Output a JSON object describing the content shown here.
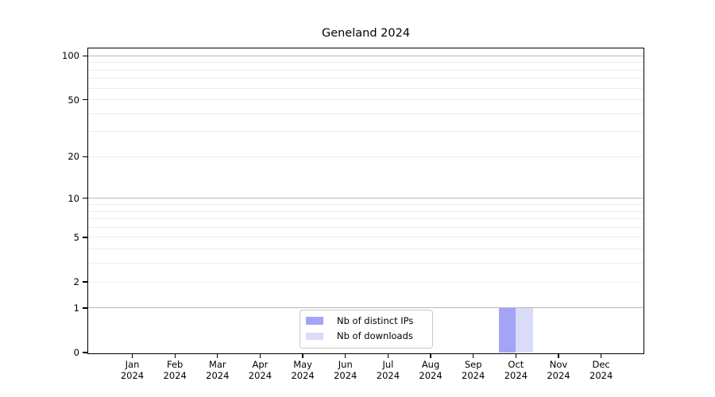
{
  "figure": {
    "title": "Geneland 2024"
  },
  "chart_data": {
    "type": "bar",
    "title": "Geneland 2024",
    "x_categories": [
      "Jan",
      "Feb",
      "Mar",
      "Apr",
      "May",
      "Jun",
      "Jul",
      "Aug",
      "Sep",
      "Oct",
      "Nov",
      "Dec"
    ],
    "x_year": "2024",
    "series": [
      {
        "name": "Nb of distinct IPs",
        "color": "#a4a4f6",
        "values": [
          0,
          0,
          0,
          0,
          0,
          0,
          0,
          0,
          0,
          1,
          0,
          0
        ]
      },
      {
        "name": "Nb of downloads",
        "color": "#dadaf9",
        "values": [
          0,
          0,
          0,
          0,
          0,
          0,
          0,
          0,
          0,
          1,
          0,
          0
        ]
      }
    ],
    "y_scale": "log10(1+x)",
    "y_ticks": [
      0,
      1,
      2,
      5,
      10,
      20,
      50,
      100
    ],
    "major_gridlines": [
      1,
      10,
      100
    ],
    "minor_gridlines": [
      2,
      3,
      4,
      5,
      6,
      7,
      8,
      9,
      20,
      30,
      40,
      50,
      60,
      70,
      80,
      90
    ],
    "ylim": [
      0,
      113
    ],
    "grid": true,
    "legend_position": "bottom-center"
  }
}
